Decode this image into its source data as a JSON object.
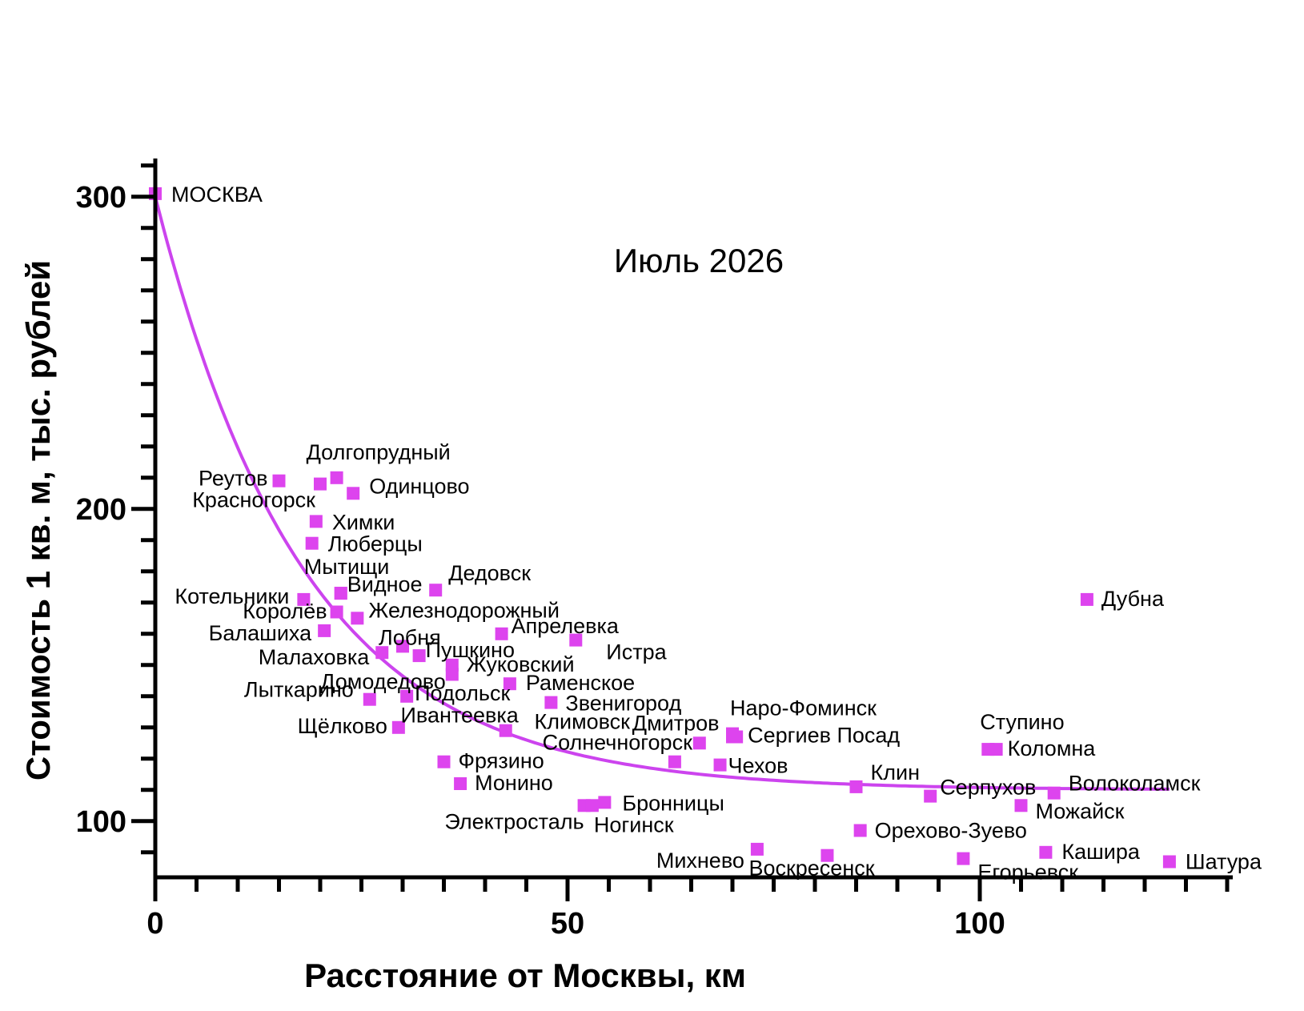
{
  "chart_data": {
    "type": "scatter",
    "annotation": "Июль 2026",
    "xlabel": "Расстояние от Москвы, км",
    "ylabel": "Стоимость 1 кв. м, тыс. рублей",
    "xlim": [
      0,
      130
    ],
    "ylim": [
      82,
      311
    ],
    "x_ticks": [
      0,
      50,
      100
    ],
    "y_ticks": [
      100,
      200,
      300
    ],
    "grid": false,
    "legend": "none",
    "colors": {
      "marker": "#dd44ee",
      "curve": "#cc44ee",
      "axis": "#000000"
    },
    "trend_curve": {
      "type": "exponential-decay",
      "a": 190,
      "k": 0.055,
      "c": 110,
      "x_range": [
        0,
        123
      ]
    },
    "points": [
      {
        "name": "МОСКВА",
        "x": 0,
        "y": 301
      },
      {
        "name": "Реутов",
        "x": 15,
        "y": 209
      },
      {
        "name": "Красногорск",
        "x": 20,
        "y": 208
      },
      {
        "name": "Долгопрудный",
        "x": 22,
        "y": 210
      },
      {
        "name": "Одинцово",
        "x": 24,
        "y": 205
      },
      {
        "name": "Химки",
        "x": 19.5,
        "y": 196
      },
      {
        "name": "Люберцы",
        "x": 19,
        "y": 189
      },
      {
        "name": "Мытищи",
        "x": 22.5,
        "y": 173
      },
      {
        "name": "Видное",
        "x": 22.5,
        "y": 173
      },
      {
        "name": "Котельники",
        "x": 18,
        "y": 171
      },
      {
        "name": "Дедовск",
        "x": 34,
        "y": 174
      },
      {
        "name": "Королёв",
        "x": 22,
        "y": 167
      },
      {
        "name": "Железнодорожный",
        "x": 24.5,
        "y": 165
      },
      {
        "name": "Балашиха",
        "x": 20.5,
        "y": 161
      },
      {
        "name": "Апрелевка",
        "x": 42,
        "y": 160
      },
      {
        "name": "Истра",
        "x": 51,
        "y": 158
      },
      {
        "name": "Лобня",
        "x": 30,
        "y": 156
      },
      {
        "name": "Малаховка",
        "x": 27.5,
        "y": 154
      },
      {
        "name": "Пушкино",
        "x": 32,
        "y": 153
      },
      {
        "name": "Жуковский",
        "x": 36,
        "y": 150
      },
      {
        "name": "Домодедово",
        "x": 36,
        "y": 147
      },
      {
        "name": "Раменское",
        "x": 43,
        "y": 144
      },
      {
        "name": "Лыткарино",
        "x": 26,
        "y": 139
      },
      {
        "name": "Подольск",
        "x": 30.5,
        "y": 140
      },
      {
        "name": "Звенигород",
        "x": 48,
        "y": 138
      },
      {
        "name": "Щёлково",
        "x": 29.5,
        "y": 130
      },
      {
        "name": "Ивантеевка",
        "x": 42.5,
        "y": 129
      },
      {
        "name": "Климовск",
        "x": 70,
        "y": 127
      },
      {
        "name": "Наро-Фоминск",
        "x": 70,
        "y": 128
      },
      {
        "name": "Дмитров",
        "x": 66,
        "y": 125
      },
      {
        "name": "Сергиев Посад",
        "x": 70.5,
        "y": 127
      },
      {
        "name": "Солнечногорск",
        "x": 63,
        "y": 119
      },
      {
        "name": "Чехов",
        "x": 68.5,
        "y": 118
      },
      {
        "name": "Фрязино",
        "x": 35,
        "y": 119
      },
      {
        "name": "Монино",
        "x": 37,
        "y": 112
      },
      {
        "name": "Ступино",
        "x": 101,
        "y": 123
      },
      {
        "name": "Коломна",
        "x": 102,
        "y": 123
      },
      {
        "name": "Клин",
        "x": 85,
        "y": 111
      },
      {
        "name": "Серпухов",
        "x": 94,
        "y": 108
      },
      {
        "name": "Волоколамск",
        "x": 109,
        "y": 109
      },
      {
        "name": "Можайск",
        "x": 105,
        "y": 105
      },
      {
        "name": "Бронницы",
        "x": 54.5,
        "y": 106
      },
      {
        "name": "Электросталь",
        "x": 52,
        "y": 105
      },
      {
        "name": "Ногинск",
        "x": 53,
        "y": 105
      },
      {
        "name": "Орехово-Зуево",
        "x": 85.5,
        "y": 97
      },
      {
        "name": "Михнево",
        "x": 73,
        "y": 91
      },
      {
        "name": "Воскресенск",
        "x": 81.5,
        "y": 89
      },
      {
        "name": "Егорьевск",
        "x": 98,
        "y": 88
      },
      {
        "name": "Кашира",
        "x": 108,
        "y": 90
      },
      {
        "name": "Шатура",
        "x": 123,
        "y": 87
      },
      {
        "name": "Дубна",
        "x": 113,
        "y": 171
      }
    ]
  }
}
